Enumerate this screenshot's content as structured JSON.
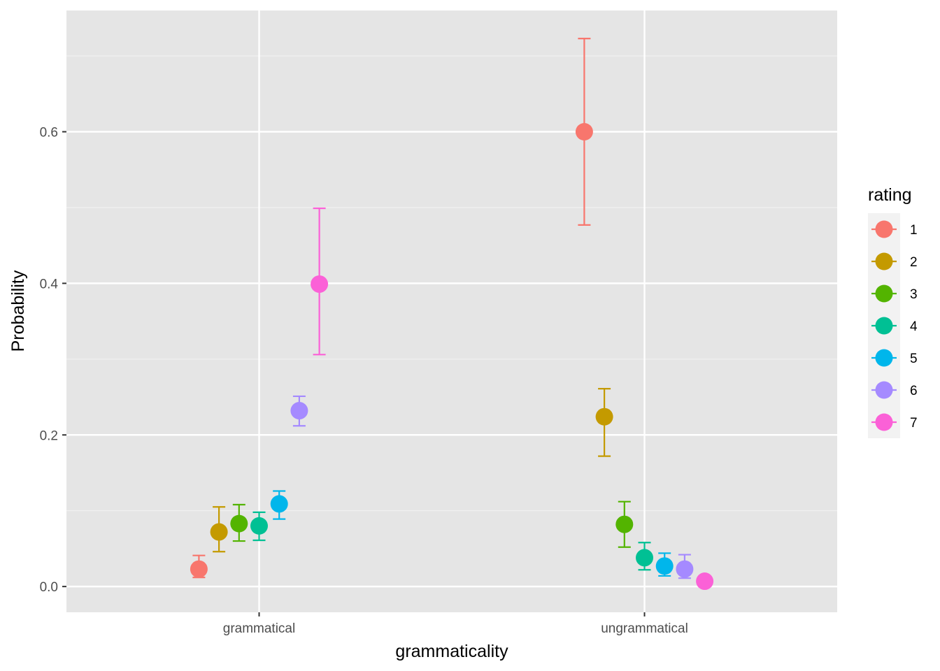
{
  "chart_data": {
    "type": "scatter",
    "title": "",
    "xlabel": "grammaticality",
    "ylabel": "Probability",
    "categories": [
      "grammatical",
      "ungrammatical"
    ],
    "ylim": [
      -0.034,
      0.76
    ],
    "y_ticks": [
      0.0,
      0.2,
      0.4,
      0.6
    ],
    "y_tick_labels": [
      "0.0",
      "0.2",
      "0.4",
      "0.6"
    ],
    "grid": true,
    "error_bars": true,
    "legend": {
      "title": "rating",
      "placement": "right"
    },
    "series": [
      {
        "name": "1",
        "color": "#F8766D",
        "points": [
          {
            "x": "grammatical",
            "y": 0.023,
            "lo": 0.012,
            "hi": 0.041
          },
          {
            "x": "ungrammatical",
            "y": 0.6,
            "lo": 0.477,
            "hi": 0.723
          }
        ]
      },
      {
        "name": "2",
        "color": "#C49A00",
        "points": [
          {
            "x": "grammatical",
            "y": 0.072,
            "lo": 0.046,
            "hi": 0.105
          },
          {
            "x": "ungrammatical",
            "y": 0.224,
            "lo": 0.172,
            "hi": 0.261
          }
        ]
      },
      {
        "name": "3",
        "color": "#53B400",
        "points": [
          {
            "x": "grammatical",
            "y": 0.083,
            "lo": 0.06,
            "hi": 0.108
          },
          {
            "x": "ungrammatical",
            "y": 0.082,
            "lo": 0.052,
            "hi": 0.112
          }
        ]
      },
      {
        "name": "4",
        "color": "#00C094",
        "points": [
          {
            "x": "grammatical",
            "y": 0.08,
            "lo": 0.061,
            "hi": 0.098
          },
          {
            "x": "ungrammatical",
            "y": 0.038,
            "lo": 0.022,
            "hi": 0.058
          }
        ]
      },
      {
        "name": "5",
        "color": "#00B6EB",
        "points": [
          {
            "x": "grammatical",
            "y": 0.109,
            "lo": 0.089,
            "hi": 0.126
          },
          {
            "x": "ungrammatical",
            "y": 0.027,
            "lo": 0.014,
            "hi": 0.044
          }
        ]
      },
      {
        "name": "6",
        "color": "#A58AFF",
        "points": [
          {
            "x": "grammatical",
            "y": 0.232,
            "lo": 0.212,
            "hi": 0.251
          },
          {
            "x": "ungrammatical",
            "y": 0.023,
            "lo": 0.011,
            "hi": 0.042
          }
        ]
      },
      {
        "name": "7",
        "color": "#FB61D7",
        "points": [
          {
            "x": "grammatical",
            "y": 0.399,
            "lo": 0.306,
            "hi": 0.499
          },
          {
            "x": "ungrammatical",
            "y": 0.007,
            "lo": 0.003,
            "hi": 0.013
          }
        ]
      }
    ]
  }
}
